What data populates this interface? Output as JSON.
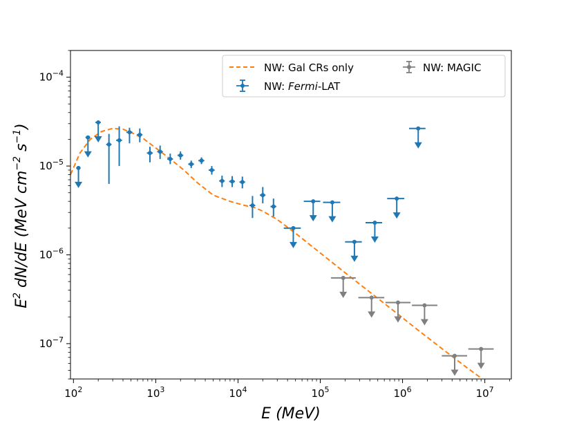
{
  "chart_data": {
    "type": "scatter",
    "title": "",
    "x_scale": "log",
    "y_scale": "log",
    "xlim": [
      92,
      21000000.0
    ],
    "ylim": [
      4e-08,
      0.0002
    ],
    "xlabel": {
      "var": "E",
      "unit": "(MeV)"
    },
    "ylabel": {
      "var": "E",
      "sup": "2",
      "rest": " dN/dE (MeV cm",
      "sup2": "−2",
      "rest2": " s",
      "sup3": "−1",
      "end": ")"
    },
    "x_ticks": [
      {
        "value": 100,
        "label": "10",
        "exp": "2"
      },
      {
        "value": 1000,
        "label": "10",
        "exp": "3"
      },
      {
        "value": 10000,
        "label": "10",
        "exp": "4"
      },
      {
        "value": 100000,
        "label": "10",
        "exp": "5"
      },
      {
        "value": 1000000,
        "label": "10",
        "exp": "6"
      },
      {
        "value": 10000000,
        "label": "10",
        "exp": "7"
      }
    ],
    "y_ticks": [
      {
        "value": 1e-07,
        "label": "10",
        "exp": "−7"
      },
      {
        "value": 1e-06,
        "label": "10",
        "exp": "−6"
      },
      {
        "value": 1e-05,
        "label": "10",
        "exp": "−5"
      },
      {
        "value": 0.0001,
        "label": "10",
        "exp": "−4"
      }
    ],
    "colors": {
      "fermi": "#1f77b4",
      "magic": "#7f7f7f",
      "model": "#ff7f0e"
    },
    "legend": {
      "position": "top-right",
      "model_label": "NW: Gal CRs only",
      "fermi_label_prefix": "NW: ",
      "fermi_label_italic": "Fermi",
      "fermi_label_suffix": "-LAT",
      "magic_label": "NW: MAGIC"
    },
    "series": [
      {
        "name": "NW: Fermi-LAT",
        "points": [
          {
            "x": 150,
            "y": 2.1e-05,
            "xlo": 140,
            "xhi": 160,
            "ul": true
          },
          {
            "x": 200,
            "y": 3.1e-05,
            "xlo": 185,
            "xhi": 215,
            "ul": true
          },
          {
            "x": 270,
            "y": 1.75e-05,
            "xlo": 250,
            "xhi": 290,
            "ylo": 6.3e-06,
            "yhi": 2.3e-05
          },
          {
            "x": 360,
            "y": 1.95e-05,
            "xlo": 330,
            "xhi": 390,
            "ylo": 1e-05,
            "yhi": 2.8e-05
          },
          {
            "x": 480,
            "y": 2.4e-05,
            "xlo": 440,
            "xhi": 520,
            "ylo": 1.8e-05,
            "yhi": 2.7e-05
          },
          {
            "x": 640,
            "y": 2.25e-05,
            "xlo": 590,
            "xhi": 690,
            "ylo": 1.85e-05,
            "yhi": 2.65e-05
          },
          {
            "x": 850,
            "y": 1.4e-05,
            "xlo": 780,
            "xhi": 920,
            "ylo": 1.1e-05,
            "yhi": 1.65e-05
          },
          {
            "x": 1130,
            "y": 1.45e-05,
            "xlo": 1040,
            "xhi": 1220,
            "ylo": 1.2e-05,
            "yhi": 1.7e-05
          },
          {
            "x": 1500,
            "y": 1.2e-05,
            "xlo": 1380,
            "xhi": 1620,
            "ylo": 1.05e-05,
            "yhi": 1.38e-05
          },
          {
            "x": 2000,
            "y": 1.32e-05,
            "xlo": 1840,
            "xhi": 2160,
            "ylo": 1.18e-05,
            "yhi": 1.46e-05
          },
          {
            "x": 2700,
            "y": 1.05e-05,
            "xlo": 2480,
            "xhi": 2920,
            "ylo": 9.5e-06,
            "yhi": 1.15e-05
          },
          {
            "x": 3600,
            "y": 1.15e-05,
            "xlo": 3300,
            "xhi": 3900,
            "ylo": 1.05e-05,
            "yhi": 1.25e-05
          },
          {
            "x": 4800,
            "y": 9e-06,
            "xlo": 4400,
            "xhi": 5200,
            "ylo": 8e-06,
            "yhi": 1e-05
          },
          {
            "x": 6400,
            "y": 6.8e-06,
            "xlo": 5900,
            "xhi": 6900,
            "ylo": 5.8e-06,
            "yhi": 7.8e-06
          },
          {
            "x": 8500,
            "y": 6.7e-06,
            "xlo": 7800,
            "xhi": 9200,
            "ylo": 5.8e-06,
            "yhi": 7.7e-06
          },
          {
            "x": 11300,
            "y": 6.6e-06,
            "xlo": 10400,
            "xhi": 12200,
            "ylo": 5.6e-06,
            "yhi": 7.6e-06
          },
          {
            "x": 15000,
            "y": 3.6e-06,
            "xlo": 13800,
            "xhi": 16200,
            "ylo": 2.6e-06,
            "yhi": 4.6e-06
          },
          {
            "x": 20000,
            "y": 4.7e-06,
            "xlo": 18400,
            "xhi": 21600,
            "ylo": 3.8e-06,
            "yhi": 5.8e-06
          },
          {
            "x": 27000,
            "y": 3.5e-06,
            "xlo": 24800,
            "xhi": 29200,
            "ylo": 2.7e-06,
            "yhi": 4.3e-06
          },
          {
            "x": 115,
            "y": 9.5e-06,
            "xlo": 108,
            "xhi": 122,
            "ul": true
          },
          {
            "x": 47000,
            "y": 2e-06,
            "xlo": 36000,
            "xhi": 58000,
            "ul": true
          },
          {
            "x": 82000,
            "y": 4e-06,
            "xlo": 63000,
            "xhi": 100000,
            "ul": true
          },
          {
            "x": 140000,
            "y": 3.9e-06,
            "xlo": 108000,
            "xhi": 175000,
            "ul": true
          },
          {
            "x": 260000,
            "y": 1.4e-06,
            "xlo": 200000,
            "xhi": 320000,
            "ul": true
          },
          {
            "x": 460000,
            "y": 2.3e-06,
            "xlo": 355000,
            "xhi": 565000,
            "ul": true
          },
          {
            "x": 850000,
            "y": 4.3e-06,
            "xlo": 650000,
            "xhi": 1050000,
            "ul": true
          },
          {
            "x": 1550000,
            "y": 2.65e-05,
            "xlo": 1200000,
            "xhi": 1900000,
            "ul": true
          }
        ]
      },
      {
        "name": "NW: MAGIC",
        "points": [
          {
            "x": 190000,
            "y": 5.5e-07,
            "xlo": 135000,
            "xhi": 270000,
            "ul": true
          },
          {
            "x": 420000,
            "y": 3.3e-07,
            "xlo": 290000,
            "xhi": 600000,
            "ul": true
          },
          {
            "x": 880000,
            "y": 2.9e-07,
            "xlo": 620000,
            "xhi": 1250000,
            "ul": true
          },
          {
            "x": 1850000,
            "y": 2.7e-07,
            "xlo": 1300000,
            "xhi": 2650000,
            "ul": true
          },
          {
            "x": 4300000,
            "y": 7.3e-08,
            "xlo": 3000000,
            "xhi": 6100000,
            "ul": true
          },
          {
            "x": 9000000,
            "y": 8.7e-08,
            "xlo": 6300000,
            "xhi": 12800000,
            "ul": true
          }
        ]
      },
      {
        "name": "NW: Gal CRs only",
        "style": "dashed-line",
        "x": [
          92,
          120,
          160,
          220,
          300,
          400,
          520,
          700,
          1000,
          1500,
          2200,
          3200,
          5000,
          8000,
          12000,
          16000,
          20000,
          30000,
          50000,
          100000,
          200000,
          400000,
          800000,
          1500000,
          3000000,
          6000000,
          9000000
        ],
        "y": [
          8e-06,
          1.4e-05,
          2e-05,
          2.45e-05,
          2.65e-05,
          2.6e-05,
          2.35e-05,
          2.05e-05,
          1.6e-05,
          1.2e-05,
          9e-06,
          6.5e-06,
          4.7e-06,
          4e-06,
          3.6e-06,
          3.4e-06,
          3.1e-06,
          2.5e-06,
          1.75e-06,
          1.05e-06,
          6.3e-07,
          3.8e-07,
          2.3e-07,
          1.45e-07,
          8.8e-08,
          5.4e-08,
          4.1e-08
        ]
      }
    ]
  }
}
